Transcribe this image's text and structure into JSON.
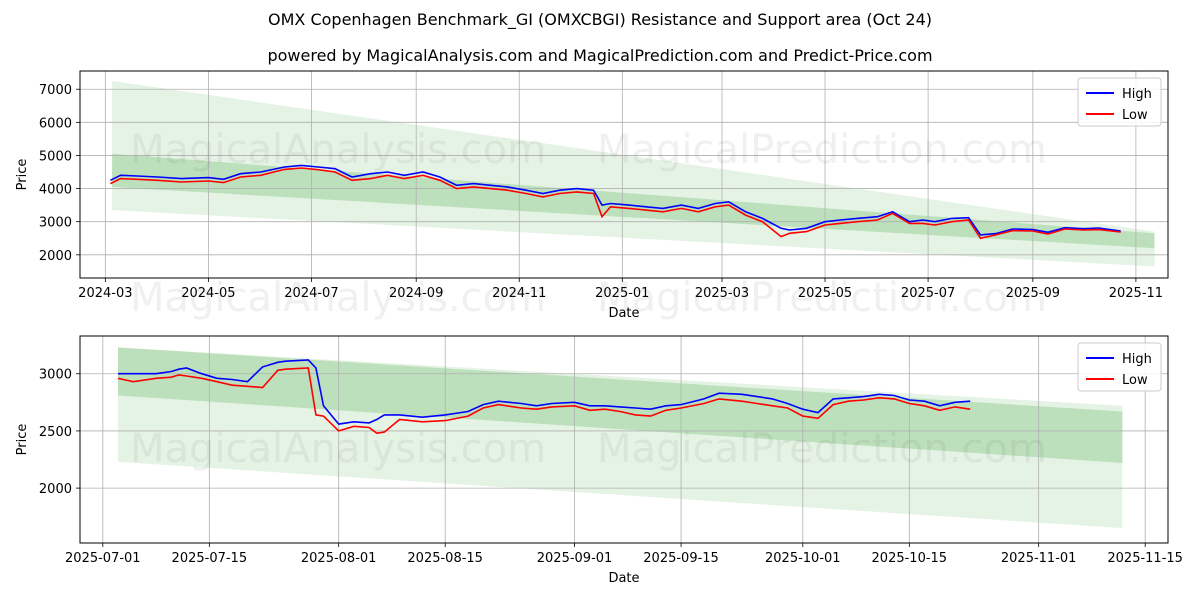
{
  "title": "OMX Copenhagen Benchmark_GI (OMXCBGI) Resistance and Support area (Oct 24)",
  "subtitle": "powered by MagicalAnalysis.com and MagicalPrediction.com and Predict-Price.com",
  "watermark": "MagicalAnalysis.com    MagicalPrediction.com",
  "colors": {
    "high": "#0000ff",
    "low": "#ff0000",
    "band": "#2ca02c",
    "grid": "#b0b0b0"
  },
  "chart_data": [
    {
      "type": "line",
      "xlabel": "Date",
      "ylabel": "Price",
      "xticks": [
        "2024-03",
        "2024-05",
        "2024-07",
        "2024-09",
        "2024-11",
        "2025-01",
        "2025-03",
        "2025-05",
        "2025-07",
        "2025-09",
        "2025-11"
      ],
      "yticks": [
        2000,
        3000,
        4000,
        5000,
        6000,
        7000
      ],
      "xlim": [
        "2024-02-15",
        "2025-11-20"
      ],
      "ylim": [
        1300,
        7550
      ],
      "grid": true,
      "legend": "top-right",
      "series": [
        {
          "name": "High",
          "x": [
            "2024-03-04",
            "2024-03-10",
            "2024-03-20",
            "2024-04-01",
            "2024-04-15",
            "2024-05-01",
            "2024-05-10",
            "2024-05-20",
            "2024-06-01",
            "2024-06-15",
            "2024-06-25",
            "2024-07-05",
            "2024-07-15",
            "2024-07-25",
            "2024-08-05",
            "2024-08-15",
            "2024-08-25",
            "2024-09-05",
            "2024-09-15",
            "2024-09-25",
            "2024-10-05",
            "2024-10-15",
            "2024-10-25",
            "2024-11-05",
            "2024-11-15",
            "2024-11-25",
            "2024-12-05",
            "2024-12-15",
            "2024-12-20",
            "2024-12-25",
            "2025-01-05",
            "2025-01-15",
            "2025-01-25",
            "2025-02-05",
            "2025-02-15",
            "2025-02-25",
            "2025-03-05",
            "2025-03-15",
            "2025-03-25",
            "2025-04-05",
            "2025-04-10",
            "2025-04-20",
            "2025-05-01",
            "2025-05-10",
            "2025-05-20",
            "2025-06-01",
            "2025-06-10",
            "2025-06-20",
            "2025-06-28",
            "2025-07-05",
            "2025-07-15",
            "2025-07-25",
            "2025-08-01",
            "2025-08-10",
            "2025-08-20",
            "2025-09-01",
            "2025-09-10",
            "2025-09-20",
            "2025-10-01",
            "2025-10-10",
            "2025-10-23"
          ],
          "values": [
            4250,
            4400,
            4380,
            4350,
            4300,
            4330,
            4280,
            4450,
            4500,
            4650,
            4700,
            4650,
            4600,
            4350,
            4450,
            4500,
            4400,
            4500,
            4350,
            4100,
            4150,
            4100,
            4050,
            3950,
            3850,
            3950,
            4000,
            3950,
            3500,
            3550,
            3500,
            3450,
            3400,
            3500,
            3400,
            3550,
            3600,
            3300,
            3100,
            2800,
            2750,
            2800,
            3000,
            3050,
            3100,
            3150,
            3300,
            3000,
            3050,
            3000,
            3100,
            3120,
            2600,
            2640,
            2780,
            2760,
            2680,
            2820,
            2790,
            2810,
            2720
          ]
        },
        {
          "name": "Low",
          "x": [
            "2024-03-04",
            "2024-03-10",
            "2024-03-20",
            "2024-04-01",
            "2024-04-15",
            "2024-05-01",
            "2024-05-10",
            "2024-05-20",
            "2024-06-01",
            "2024-06-15",
            "2024-06-25",
            "2024-07-05",
            "2024-07-15",
            "2024-07-25",
            "2024-08-05",
            "2024-08-15",
            "2024-08-25",
            "2024-09-05",
            "2024-09-15",
            "2024-09-25",
            "2024-10-05",
            "2024-10-15",
            "2024-10-25",
            "2024-11-05",
            "2024-11-15",
            "2024-11-25",
            "2024-12-05",
            "2024-12-15",
            "2024-12-20",
            "2024-12-25",
            "2025-01-05",
            "2025-01-15",
            "2025-01-25",
            "2025-02-05",
            "2025-02-15",
            "2025-02-25",
            "2025-03-05",
            "2025-03-15",
            "2025-03-25",
            "2025-04-05",
            "2025-04-10",
            "2025-04-20",
            "2025-05-01",
            "2025-05-10",
            "2025-05-20",
            "2025-06-01",
            "2025-06-10",
            "2025-06-20",
            "2025-06-28",
            "2025-07-05",
            "2025-07-15",
            "2025-07-25",
            "2025-08-01",
            "2025-08-10",
            "2025-08-20",
            "2025-09-01",
            "2025-09-10",
            "2025-09-20",
            "2025-10-01",
            "2025-10-10",
            "2025-10-23"
          ],
          "values": [
            4150,
            4300,
            4280,
            4250,
            4200,
            4230,
            4180,
            4350,
            4400,
            4580,
            4620,
            4570,
            4500,
            4250,
            4300,
            4400,
            4300,
            4400,
            4250,
            4000,
            4050,
            4000,
            3950,
            3850,
            3750,
            3850,
            3900,
            3850,
            3150,
            3450,
            3400,
            3350,
            3300,
            3400,
            3300,
            3450,
            3500,
            3200,
            3000,
            2550,
            2650,
            2700,
            2900,
            2950,
            3000,
            3050,
            3250,
            2950,
            2950,
            2900,
            3000,
            3050,
            2500,
            2600,
            2730,
            2720,
            2630,
            2780,
            2750,
            2760,
            2690
          ]
        }
      ],
      "bands": [
        {
          "x": [
            "2024-03-05",
            "2025-11-12"
          ],
          "upper": [
            7250,
            2700
          ],
          "lower": [
            3350,
            1650
          ]
        },
        {
          "x": [
            "2024-03-05",
            "2025-11-12"
          ],
          "upper": [
            5050,
            2650
          ],
          "lower": [
            4050,
            2200
          ]
        }
      ]
    },
    {
      "type": "line",
      "xlabel": "Date",
      "ylabel": "Price",
      "xticks": [
        "2025-07-01",
        "2025-07-15",
        "2025-08-01",
        "2025-08-15",
        "2025-09-01",
        "2025-09-15",
        "2025-10-01",
        "2025-10-15",
        "2025-11-01",
        "2025-11-15"
      ],
      "yticks": [
        2000,
        2500,
        3000
      ],
      "xlim": [
        "2025-06-28",
        "2025-11-18"
      ],
      "ylim": [
        1520,
        3330
      ],
      "grid": true,
      "legend": "top-right",
      "series": [
        {
          "name": "High",
          "x": [
            "2025-07-03",
            "2025-07-05",
            "2025-07-08",
            "2025-07-10",
            "2025-07-11",
            "2025-07-12",
            "2025-07-14",
            "2025-07-16",
            "2025-07-18",
            "2025-07-20",
            "2025-07-22",
            "2025-07-24",
            "2025-07-25",
            "2025-07-28",
            "2025-07-29",
            "2025-07-30",
            "2025-08-01",
            "2025-08-03",
            "2025-08-05",
            "2025-08-06",
            "2025-08-07",
            "2025-08-09",
            "2025-08-12",
            "2025-08-15",
            "2025-08-18",
            "2025-08-20",
            "2025-08-22",
            "2025-08-25",
            "2025-08-27",
            "2025-08-29",
            "2025-09-01",
            "2025-09-03",
            "2025-09-05",
            "2025-09-07",
            "2025-09-09",
            "2025-09-11",
            "2025-09-13",
            "2025-09-15",
            "2025-09-18",
            "2025-09-20",
            "2025-09-23",
            "2025-09-25",
            "2025-09-27",
            "2025-09-29",
            "2025-10-01",
            "2025-10-03",
            "2025-10-05",
            "2025-10-07",
            "2025-10-09",
            "2025-10-11",
            "2025-10-13",
            "2025-10-15",
            "2025-10-17",
            "2025-10-19",
            "2025-10-21",
            "2025-10-23"
          ],
          "values": [
            3000,
            3000,
            3000,
            3020,
            3040,
            3050,
            3000,
            2960,
            2950,
            2930,
            3060,
            3100,
            3110,
            3120,
            3050,
            2720,
            2560,
            2580,
            2570,
            2600,
            2640,
            2640,
            2620,
            2640,
            2670,
            2730,
            2760,
            2740,
            2720,
            2740,
            2750,
            2720,
            2720,
            2710,
            2700,
            2690,
            2720,
            2730,
            2780,
            2830,
            2820,
            2800,
            2780,
            2740,
            2690,
            2660,
            2780,
            2790,
            2800,
            2820,
            2810,
            2770,
            2760,
            2720,
            2750,
            2760
          ]
        },
        {
          "name": "Low",
          "x": [
            "2025-07-03",
            "2025-07-05",
            "2025-07-08",
            "2025-07-10",
            "2025-07-11",
            "2025-07-12",
            "2025-07-14",
            "2025-07-16",
            "2025-07-18",
            "2025-07-20",
            "2025-07-22",
            "2025-07-24",
            "2025-07-25",
            "2025-07-28",
            "2025-07-29",
            "2025-07-30",
            "2025-08-01",
            "2025-08-03",
            "2025-08-05",
            "2025-08-06",
            "2025-08-07",
            "2025-08-09",
            "2025-08-12",
            "2025-08-15",
            "2025-08-18",
            "2025-08-20",
            "2025-08-22",
            "2025-08-25",
            "2025-08-27",
            "2025-08-29",
            "2025-09-01",
            "2025-09-03",
            "2025-09-05",
            "2025-09-07",
            "2025-09-09",
            "2025-09-11",
            "2025-09-13",
            "2025-09-15",
            "2025-09-18",
            "2025-09-20",
            "2025-09-23",
            "2025-09-25",
            "2025-09-27",
            "2025-09-29",
            "2025-10-01",
            "2025-10-03",
            "2025-10-05",
            "2025-10-07",
            "2025-10-09",
            "2025-10-11",
            "2025-10-13",
            "2025-10-15",
            "2025-10-17",
            "2025-10-19",
            "2025-10-21",
            "2025-10-23"
          ],
          "values": [
            2960,
            2930,
            2960,
            2970,
            2990,
            2980,
            2960,
            2930,
            2900,
            2890,
            2880,
            3030,
            3040,
            3050,
            2640,
            2630,
            2500,
            2540,
            2530,
            2480,
            2490,
            2600,
            2580,
            2590,
            2630,
            2700,
            2730,
            2700,
            2690,
            2710,
            2720,
            2680,
            2690,
            2670,
            2640,
            2630,
            2680,
            2700,
            2740,
            2780,
            2760,
            2740,
            2720,
            2700,
            2630,
            2610,
            2730,
            2760,
            2770,
            2790,
            2780,
            2740,
            2720,
            2680,
            2710,
            2690
          ]
        }
      ],
      "bands": [
        {
          "x": [
            "2025-07-03",
            "2025-11-12"
          ],
          "upper": [
            3230,
            2720
          ],
          "lower": [
            2230,
            1650
          ]
        },
        {
          "x": [
            "2025-07-03",
            "2025-11-12"
          ],
          "upper": [
            3230,
            2670
          ],
          "lower": [
            2810,
            2220
          ]
        }
      ]
    }
  ]
}
